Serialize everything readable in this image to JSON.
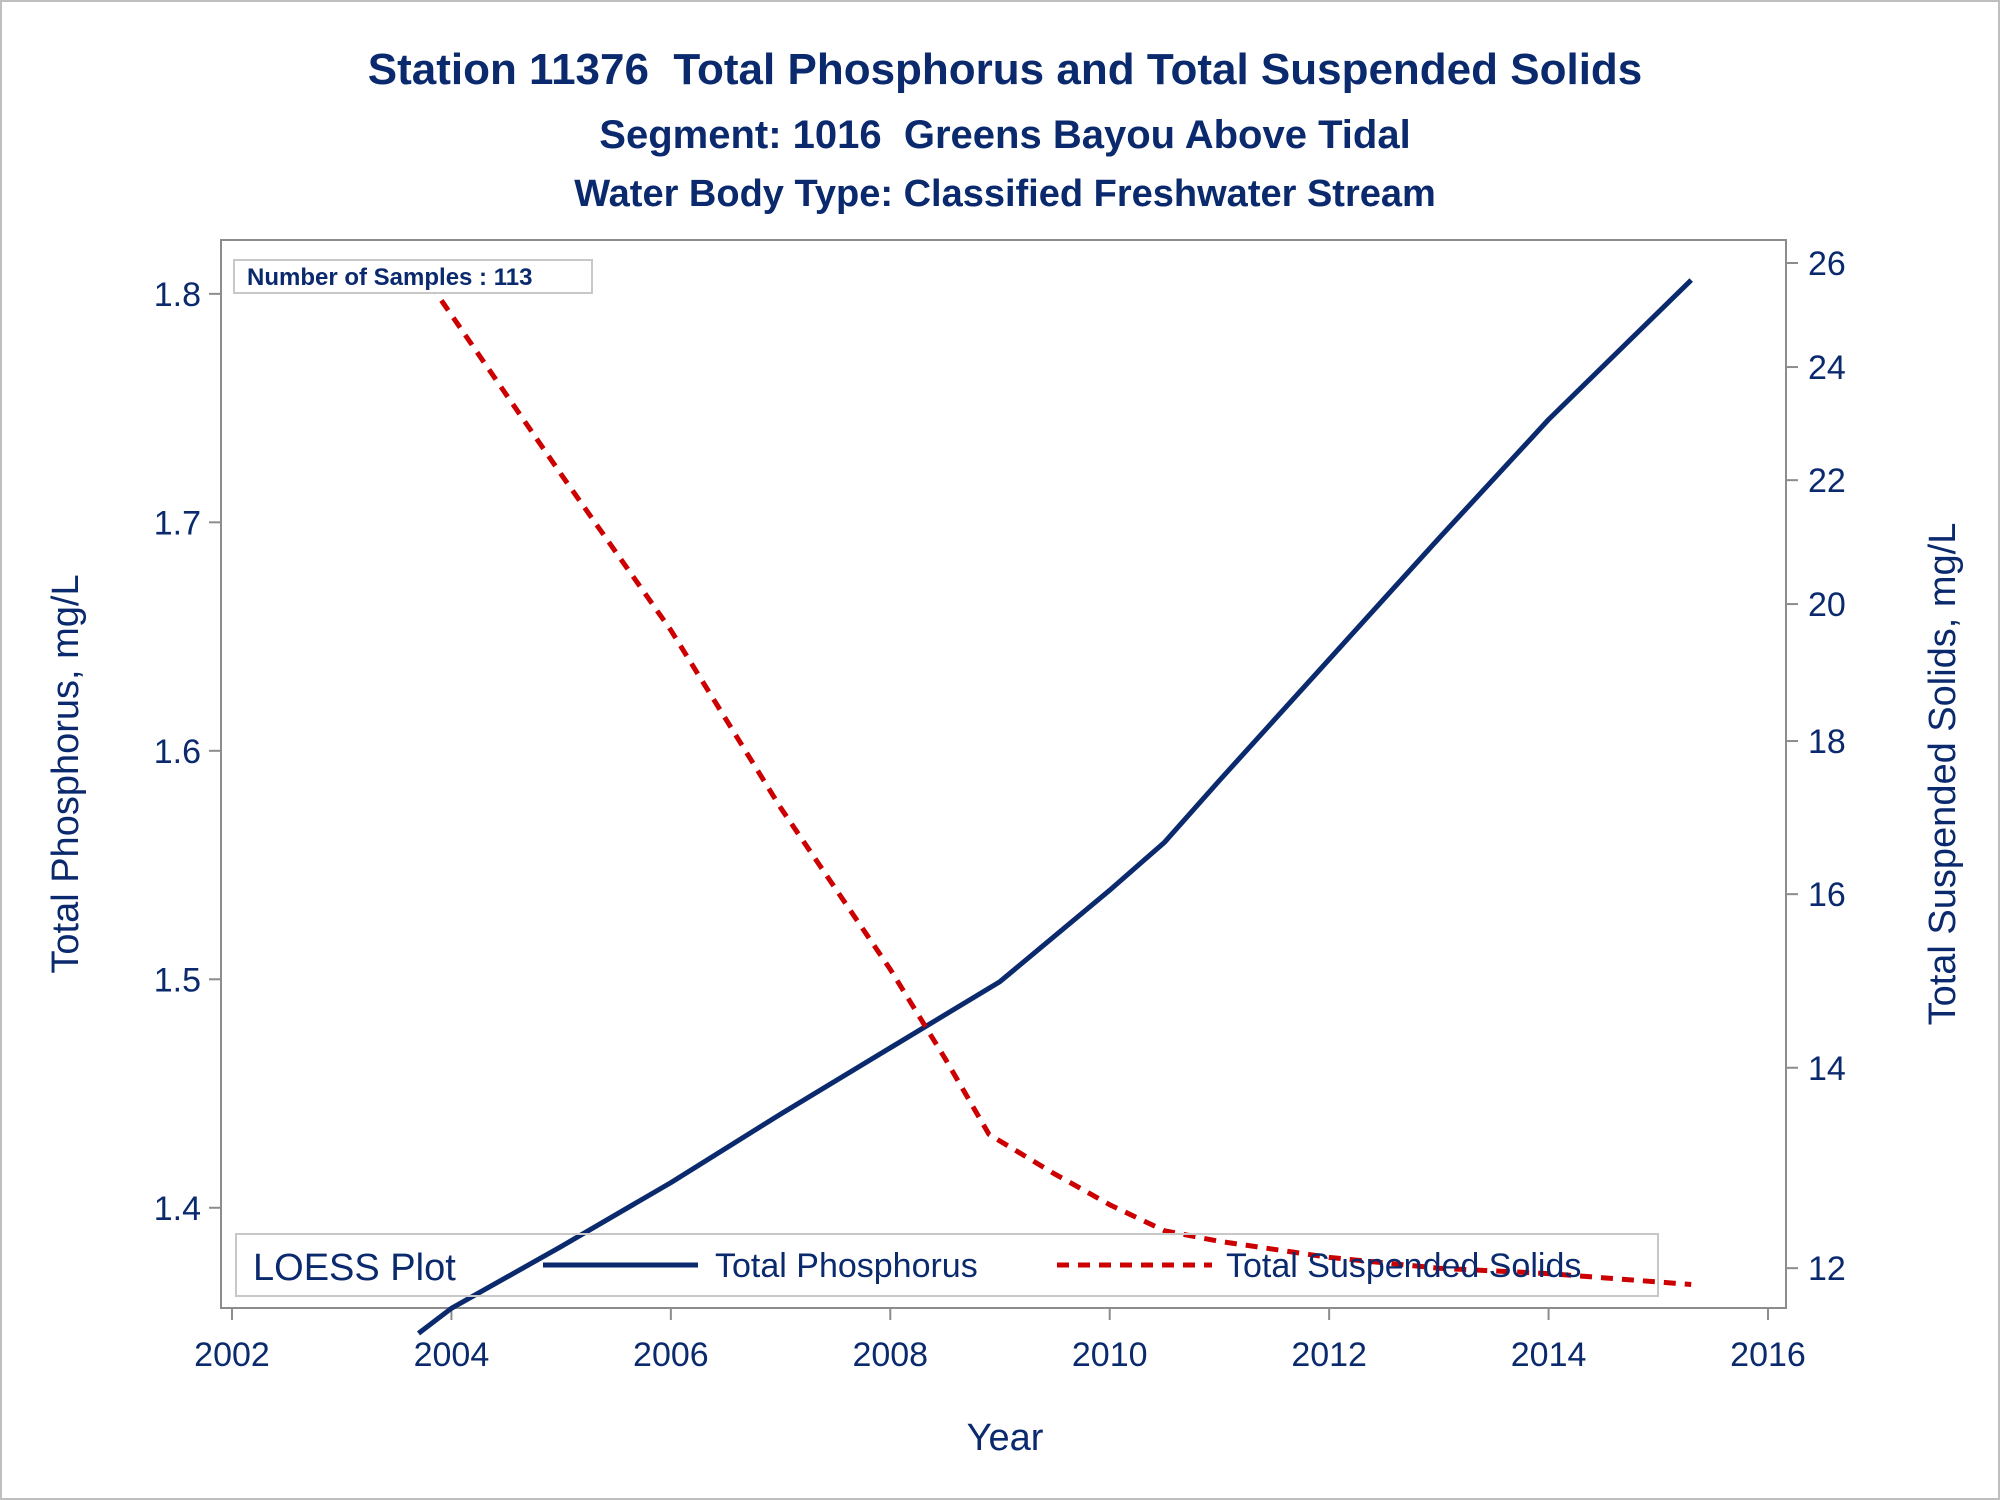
{
  "chart_data": {
    "type": "line",
    "title": "Station 11376  Total Phosphorus and Total Suspended Solids",
    "subtitle": "Segment: 1016  Greens Bayou Above Tidal",
    "subtitle2": "Water Body Type: Classified Freshwater Stream",
    "xlabel": "Year",
    "ylabel_left": "Total Phosphorus, mg/L",
    "ylabel_right": "Total Suspended Solids, mg/L",
    "xlim": [
      2002,
      2016
    ],
    "ylim_left": [
      1.35,
      1.81
    ],
    "ylim_right": [
      11.8,
      26.1
    ],
    "yscale_right": "log",
    "x_ticks": [
      "2002",
      "2004",
      "2006",
      "2008",
      "2010",
      "2012",
      "2014",
      "2016"
    ],
    "x_tick_values": [
      2002,
      2004,
      2006,
      2008,
      2010,
      2012,
      2014,
      2016
    ],
    "y_left_ticks": [
      "1.4",
      "1.5",
      "1.6",
      "1.7",
      "1.8"
    ],
    "y_left_tick_values": [
      1.4,
      1.5,
      1.6,
      1.7,
      1.8
    ],
    "y_right_ticks": [
      "12",
      "14",
      "16",
      "18",
      "20",
      "22",
      "24",
      "26"
    ],
    "y_right_tick_values": [
      12,
      14,
      16,
      18,
      20,
      22,
      24,
      26
    ],
    "annotation": "Number of Samples : 113",
    "legend": {
      "title": "LOESS Plot",
      "position": "bottom-inside",
      "entries": [
        "Total Phosphorus",
        "Total Suspended Solids"
      ]
    },
    "series": [
      {
        "name": "Total Phosphorus",
        "axis": "left",
        "color": "#0b2a6e",
        "style": "solid",
        "x": [
          2003.7,
          2004.0,
          2005.0,
          2006.0,
          2007.0,
          2008.0,
          2009.0,
          2010.0,
          2010.5,
          2011.0,
          2012.0,
          2013.0,
          2014.0,
          2015.3
        ],
        "y": [
          1.345,
          1.356,
          1.383,
          1.411,
          1.441,
          1.47,
          1.499,
          1.539,
          1.56,
          1.587,
          1.64,
          1.693,
          1.745,
          1.806
        ]
      },
      {
        "name": "Total Suspended Solids",
        "axis": "right",
        "color": "#cc0000",
        "style": "dashed",
        "x": [
          2003.8,
          2005.0,
          2006.0,
          2007.0,
          2008.0,
          2008.5,
          2008.9,
          2009.5,
          2010.0,
          2010.5,
          2011.0,
          2012.0,
          2013.0,
          2014.0,
          2015.3
        ],
        "y": [
          25.6,
          22.1,
          19.6,
          17.1,
          15.1,
          14.1,
          13.3,
          12.9,
          12.6,
          12.35,
          12.25,
          12.1,
          12.0,
          11.95,
          11.85
        ]
      }
    ]
  }
}
